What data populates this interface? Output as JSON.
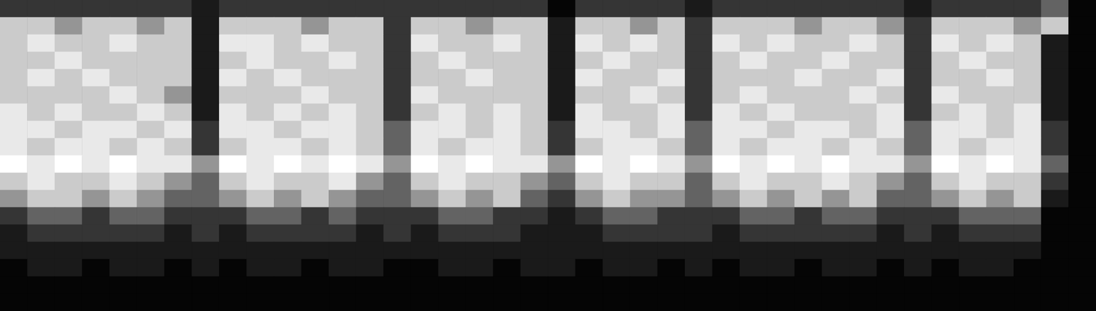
{
  "chart_data": {
    "type": "heatmap",
    "tick_labels": false,
    "grid": false,
    "cells": [
      [
        3,
        3,
        3,
        3,
        3,
        3,
        3,
        2,
        3,
        3,
        3,
        3,
        3,
        3,
        3,
        3,
        3,
        3,
        3,
        3,
        1,
        3,
        3,
        3,
        3,
        2,
        3,
        3,
        3,
        3,
        3,
        3,
        3,
        2,
        3,
        3,
        3,
        3,
        4,
        1
      ],
      [
        6,
        6,
        5,
        6,
        6,
        5,
        6,
        2,
        6,
        6,
        6,
        5,
        6,
        6,
        3,
        6,
        6,
        5,
        6,
        6,
        2,
        6,
        6,
        5,
        6,
        3,
        6,
        6,
        6,
        5,
        6,
        6,
        5,
        3,
        6,
        6,
        6,
        5,
        6,
        1
      ],
      [
        6,
        7,
        6,
        6,
        7,
        6,
        6,
        2,
        7,
        7,
        6,
        7,
        6,
        6,
        3,
        7,
        6,
        6,
        7,
        6,
        2,
        7,
        6,
        7,
        6,
        3,
        7,
        6,
        7,
        6,
        6,
        7,
        6,
        3,
        7,
        6,
        7,
        6,
        2,
        1
      ],
      [
        6,
        6,
        7,
        6,
        6,
        6,
        6,
        2,
        6,
        7,
        6,
        6,
        7,
        6,
        3,
        6,
        7,
        6,
        6,
        6,
        2,
        6,
        7,
        6,
        6,
        3,
        6,
        7,
        6,
        6,
        7,
        6,
        6,
        3,
        6,
        7,
        6,
        6,
        2,
        1
      ],
      [
        6,
        7,
        6,
        7,
        6,
        6,
        6,
        2,
        7,
        6,
        7,
        6,
        6,
        6,
        3,
        6,
        6,
        7,
        6,
        6,
        2,
        7,
        6,
        6,
        7,
        3,
        6,
        6,
        6,
        7,
        6,
        6,
        7,
        3,
        6,
        6,
        7,
        6,
        2,
        1
      ],
      [
        6,
        6,
        6,
        6,
        7,
        6,
        5,
        2,
        6,
        6,
        6,
        7,
        6,
        6,
        3,
        7,
        6,
        6,
        6,
        6,
        2,
        6,
        6,
        7,
        6,
        3,
        6,
        7,
        6,
        6,
        6,
        7,
        6,
        3,
        7,
        6,
        6,
        6,
        2,
        1
      ],
      [
        7,
        6,
        7,
        6,
        6,
        7,
        6,
        2,
        7,
        6,
        7,
        6,
        7,
        6,
        3,
        6,
        7,
        6,
        7,
        6,
        2,
        7,
        6,
        6,
        7,
        3,
        7,
        6,
        7,
        6,
        6,
        6,
        7,
        3,
        6,
        7,
        6,
        7,
        2,
        1
      ],
      [
        7,
        7,
        6,
        7,
        7,
        6,
        7,
        3,
        7,
        7,
        6,
        7,
        7,
        6,
        4,
        7,
        7,
        6,
        7,
        6,
        3,
        7,
        7,
        6,
        7,
        4,
        7,
        7,
        6,
        7,
        7,
        6,
        7,
        4,
        7,
        7,
        6,
        7,
        3,
        1
      ],
      [
        7,
        6,
        7,
        7,
        6,
        7,
        6,
        3,
        6,
        7,
        7,
        6,
        7,
        6,
        4,
        7,
        6,
        7,
        7,
        6,
        3,
        6,
        7,
        7,
        6,
        4,
        7,
        6,
        7,
        7,
        6,
        7,
        6,
        4,
        7,
        6,
        7,
        7,
        3,
        1
      ],
      [
        8,
        7,
        8,
        7,
        8,
        7,
        7,
        5,
        8,
        7,
        8,
        7,
        8,
        7,
        5,
        8,
        7,
        8,
        7,
        7,
        5,
        8,
        7,
        8,
        7,
        5,
        8,
        7,
        8,
        7,
        8,
        7,
        7,
        5,
        8,
        7,
        8,
        7,
        4,
        1
      ],
      [
        6,
        7,
        6,
        6,
        7,
        6,
        5,
        4,
        6,
        7,
        6,
        6,
        7,
        5,
        4,
        6,
        7,
        6,
        6,
        5,
        4,
        6,
        7,
        6,
        6,
        4,
        6,
        7,
        6,
        6,
        7,
        6,
        5,
        4,
        6,
        7,
        6,
        6,
        3,
        1
      ],
      [
        5,
        6,
        6,
        5,
        6,
        5,
        4,
        4,
        5,
        6,
        5,
        6,
        5,
        4,
        4,
        5,
        6,
        5,
        6,
        4,
        3,
        5,
        6,
        5,
        5,
        4,
        5,
        6,
        5,
        6,
        5,
        6,
        4,
        4,
        5,
        6,
        5,
        6,
        2,
        1
      ],
      [
        3,
        4,
        4,
        3,
        4,
        4,
        3,
        3,
        3,
        4,
        4,
        3,
        4,
        3,
        3,
        3,
        4,
        4,
        3,
        3,
        2,
        3,
        4,
        4,
        3,
        3,
        3,
        4,
        4,
        3,
        4,
        4,
        3,
        3,
        3,
        4,
        4,
        4,
        1,
        1
      ],
      [
        2,
        3,
        3,
        3,
        3,
        3,
        2,
        3,
        2,
        3,
        3,
        3,
        3,
        2,
        3,
        2,
        3,
        3,
        3,
        2,
        2,
        2,
        3,
        3,
        3,
        3,
        2,
        3,
        3,
        3,
        3,
        3,
        2,
        3,
        2,
        3,
        3,
        3,
        1,
        1
      ],
      [
        2,
        2,
        2,
        2,
        2,
        2,
        2,
        2,
        2,
        2,
        2,
        2,
        2,
        2,
        2,
        2,
        2,
        2,
        2,
        2,
        2,
        2,
        2,
        2,
        2,
        2,
        2,
        2,
        2,
        2,
        2,
        2,
        2,
        2,
        2,
        2,
        2,
        2,
        1,
        1
      ],
      [
        1,
        2,
        2,
        1,
        2,
        2,
        1,
        2,
        1,
        2,
        2,
        1,
        2,
        2,
        1,
        1,
        2,
        2,
        1,
        2,
        2,
        1,
        2,
        2,
        1,
        2,
        1,
        2,
        2,
        1,
        2,
        2,
        1,
        2,
        1,
        2,
        2,
        1,
        1,
        1
      ],
      [
        1,
        1,
        1,
        1,
        1,
        1,
        1,
        1,
        1,
        1,
        1,
        1,
        1,
        1,
        1,
        1,
        1,
        1,
        1,
        1,
        1,
        1,
        1,
        1,
        1,
        1,
        1,
        1,
        1,
        1,
        1,
        1,
        1,
        1,
        1,
        1,
        1,
        1,
        1,
        1
      ],
      [
        1,
        1,
        1,
        1,
        1,
        1,
        1,
        1,
        1,
        1,
        1,
        1,
        1,
        1,
        1,
        1,
        1,
        1,
        1,
        1,
        1,
        1,
        1,
        1,
        1,
        1,
        1,
        1,
        1,
        1,
        1,
        1,
        1,
        1,
        1,
        1,
        1,
        1,
        1,
        1
      ]
    ]
  }
}
